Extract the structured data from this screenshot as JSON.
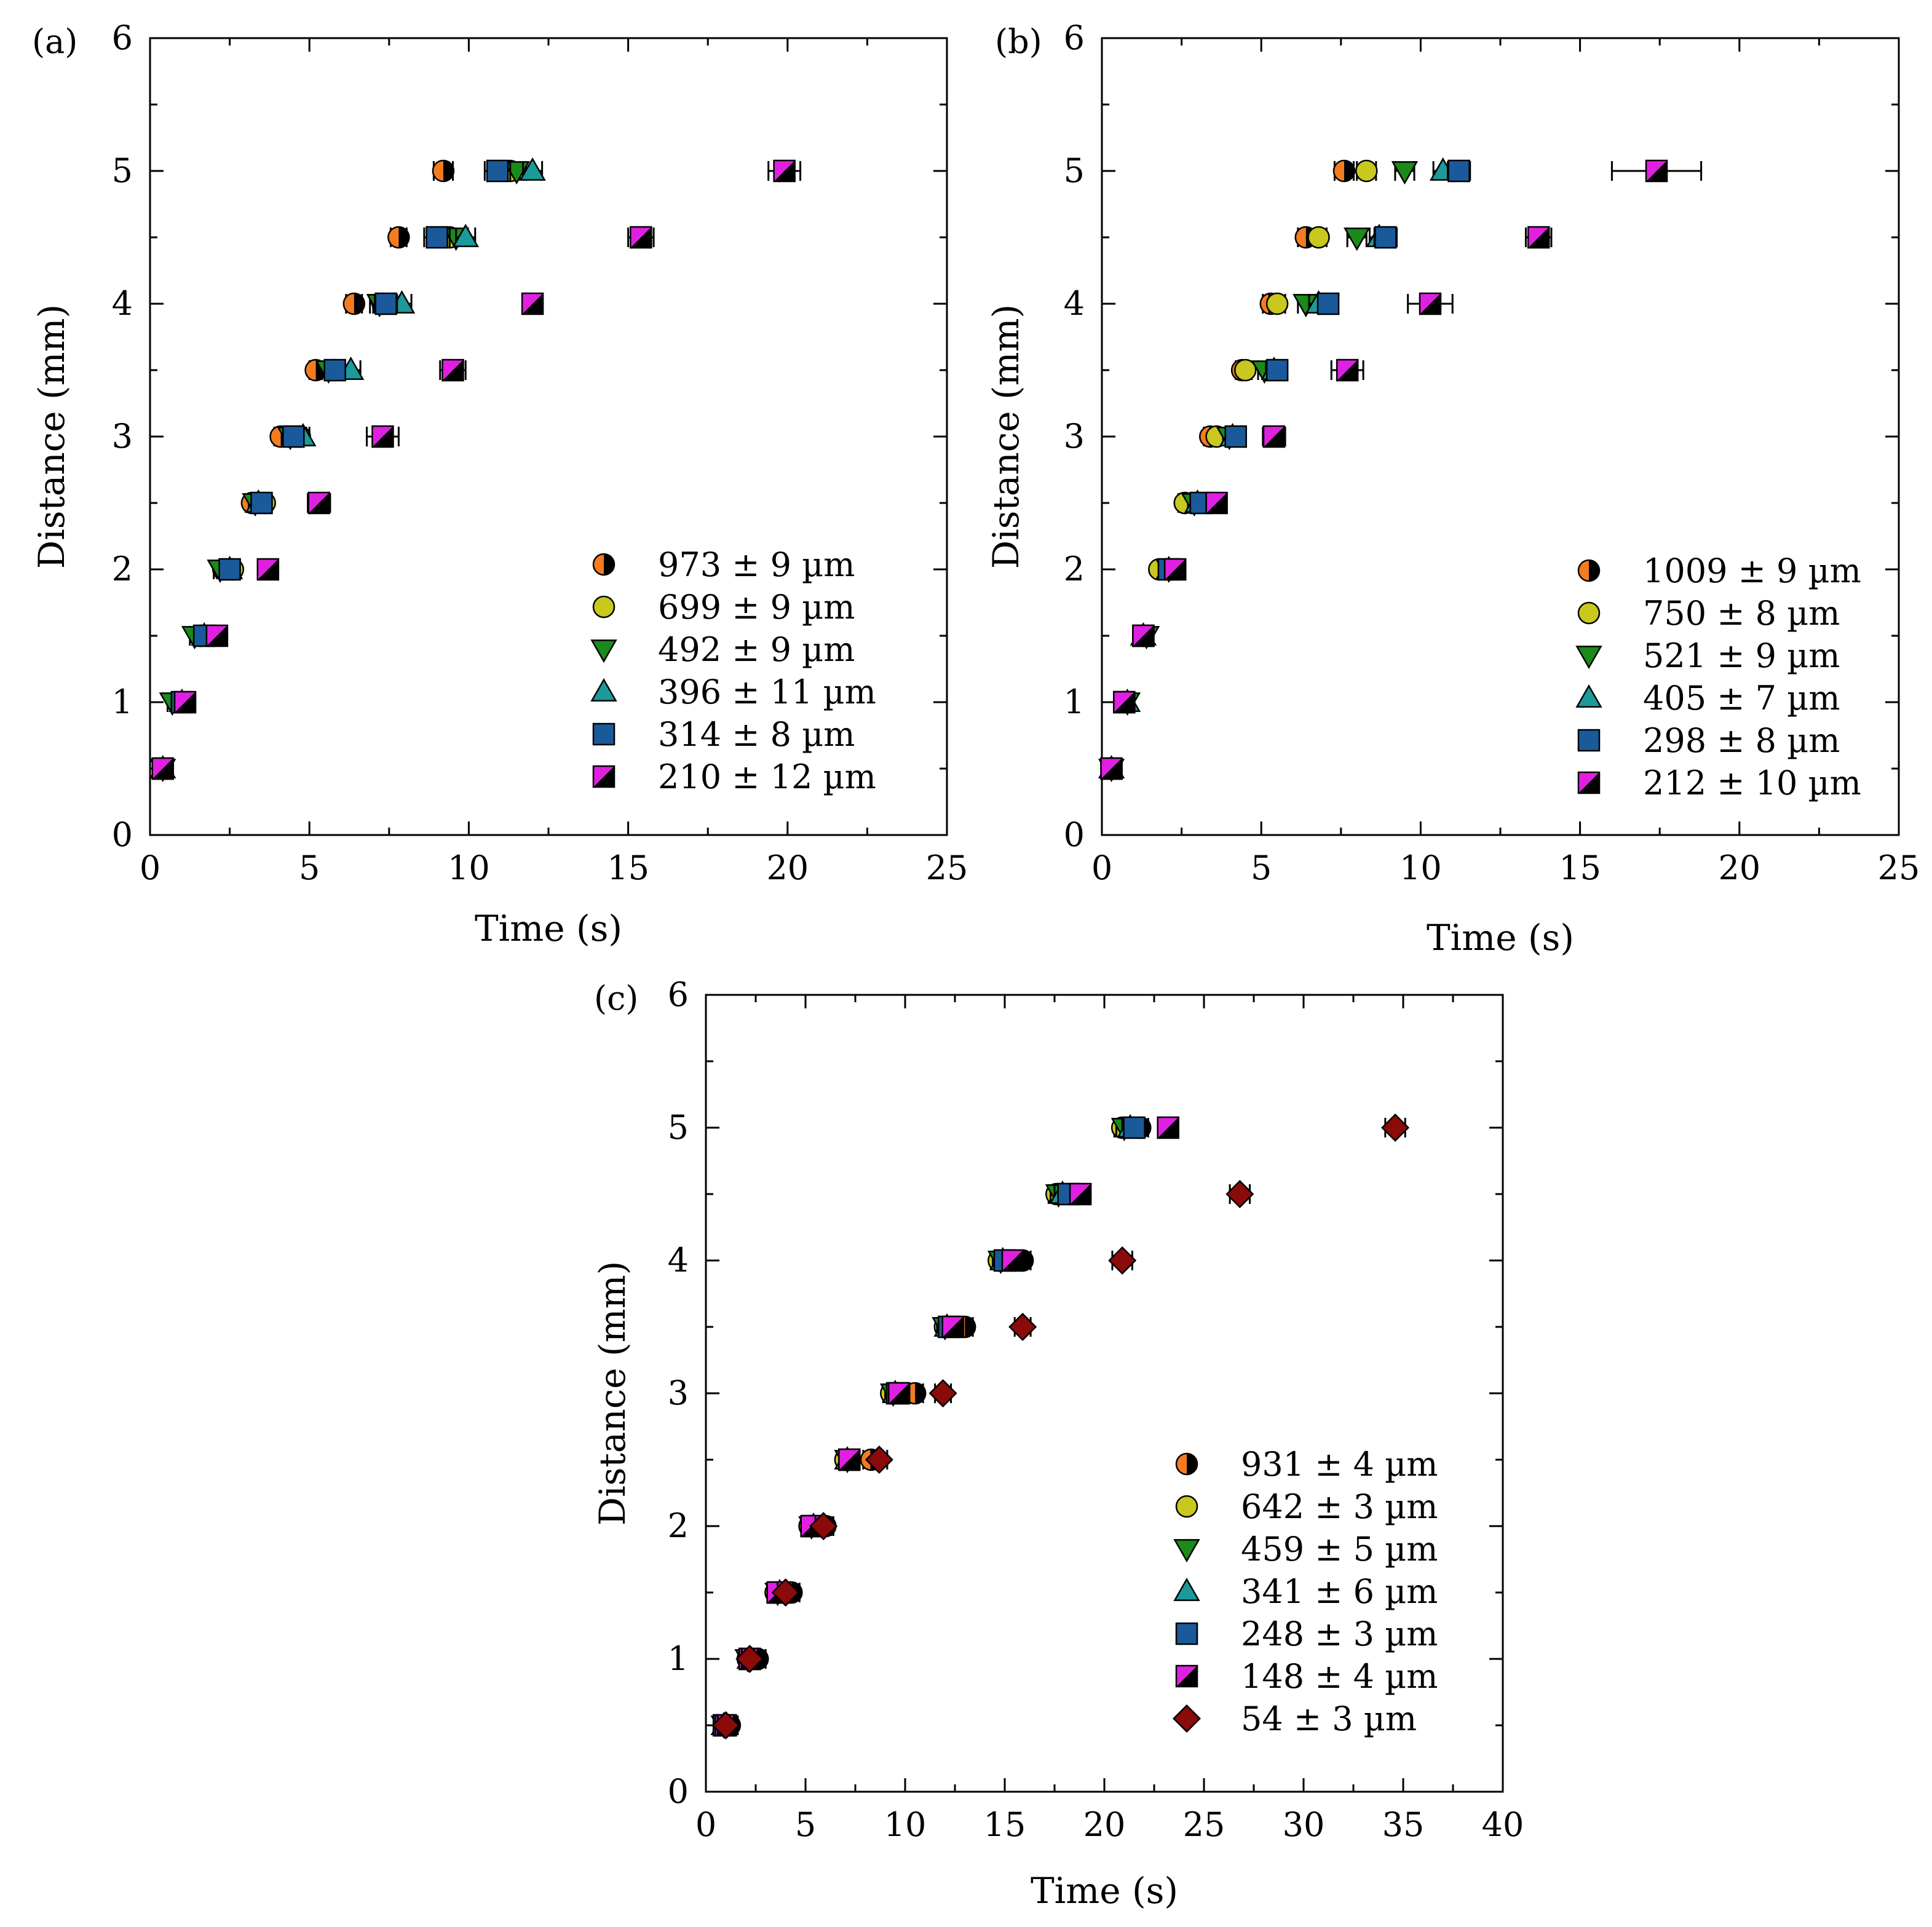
{
  "colors": {
    "orange": "#f47b20",
    "yellow": "#c8c81e",
    "green": "#1a8a1a",
    "teal": "#1c9a9a",
    "blue": "#1a5a9a",
    "magenta": "#e020e0",
    "darkred": "#8b0a0a",
    "black": "#000000"
  },
  "chart_data": [
    {
      "panel": "(a)",
      "type": "scatter",
      "xlabel": "Time (s)",
      "ylabel": "Distance (mm)",
      "xlim": [
        0,
        25
      ],
      "ylim": [
        0,
        6
      ],
      "xticks": [
        "0",
        "5",
        "10",
        "15",
        "20",
        "25"
      ],
      "yticks": [
        "0",
        "1",
        "2",
        "3",
        "4",
        "5",
        "6"
      ],
      "legend_position": "bottom-right",
      "series": [
        {
          "name": "973 ± 9 µm",
          "marker": "half-circle",
          "color": "orange",
          "x": [
            0.4,
            1.0,
            1.6,
            2.3,
            3.2,
            4.1,
            5.2,
            6.4,
            7.8,
            9.2
          ],
          "y": [
            0.5,
            1.0,
            1.5,
            2.0,
            2.5,
            3.0,
            3.5,
            4.0,
            4.5,
            5.0
          ],
          "xerr": [
            0.15,
            0.15,
            0.15,
            0.2,
            0.2,
            0.2,
            0.2,
            0.25,
            0.25,
            0.3
          ]
        },
        {
          "name": "699 ± 9 µm",
          "marker": "circle",
          "color": "yellow",
          "x": [
            0.4,
            1.0,
            1.6,
            2.6,
            3.6,
            4.7,
            5.8,
            7.3,
            9.4,
            11.3
          ],
          "y": [
            0.5,
            1.0,
            1.5,
            2.0,
            2.5,
            3.0,
            3.5,
            4.0,
            4.5,
            5.0
          ],
          "xerr": [
            0.15,
            0.15,
            0.15,
            0.2,
            0.2,
            0.2,
            0.25,
            0.3,
            0.3,
            0.3
          ]
        },
        {
          "name": "492 ± 9 µm",
          "marker": "triangle-down",
          "color": "green",
          "x": [
            0.4,
            0.7,
            1.4,
            2.2,
            3.3,
            4.4,
            5.6,
            7.2,
            9.6,
            11.5
          ],
          "y": [
            0.5,
            1.0,
            1.5,
            2.0,
            2.5,
            3.0,
            3.5,
            4.0,
            4.5,
            5.0
          ],
          "xerr": [
            0.15,
            0.15,
            0.15,
            0.2,
            0.2,
            0.2,
            0.25,
            0.3,
            0.3,
            0.3
          ]
        },
        {
          "name": "396 ± 11 µm",
          "marker": "triangle-up",
          "color": "teal",
          "x": [
            0.4,
            1.0,
            1.7,
            2.5,
            3.4,
            4.8,
            6.3,
            7.9,
            9.9,
            12.0
          ],
          "y": [
            0.5,
            1.0,
            1.5,
            2.0,
            2.5,
            3.0,
            3.5,
            4.0,
            4.5,
            5.0
          ],
          "xerr": [
            0.15,
            0.15,
            0.15,
            0.2,
            0.2,
            0.2,
            0.3,
            0.3,
            0.3,
            0.3
          ]
        },
        {
          "name": "314 ± 8 µm",
          "marker": "square",
          "color": "blue",
          "x": [
            0.4,
            1.0,
            1.7,
            2.5,
            3.5,
            4.5,
            5.8,
            7.4,
            9.0,
            10.9
          ],
          "y": [
            0.5,
            1.0,
            1.5,
            2.0,
            2.5,
            3.0,
            3.5,
            4.0,
            4.5,
            5.0
          ],
          "xerr": [
            0.15,
            0.15,
            0.15,
            0.2,
            0.2,
            0.25,
            0.3,
            0.35,
            0.4,
            0.4
          ]
        },
        {
          "name": "210 ± 12 µm",
          "marker": "half-square",
          "color": "magenta",
          "x": [
            0.4,
            1.1,
            2.1,
            3.7,
            5.3,
            7.3,
            9.5,
            12.0,
            15.4,
            19.9
          ],
          "y": [
            0.5,
            1.0,
            1.5,
            2.0,
            2.5,
            3.0,
            3.5,
            4.0,
            4.5,
            5.0
          ],
          "xerr": [
            0.15,
            0.2,
            0.25,
            0.25,
            0.35,
            0.5,
            0.4,
            0.3,
            0.4,
            0.5
          ]
        }
      ]
    },
    {
      "panel": "(b)",
      "type": "scatter",
      "xlabel": "Time (s)",
      "ylabel": "Distance (mm)",
      "xlim": [
        0,
        25
      ],
      "ylim": [
        0,
        6
      ],
      "xticks": [
        "0",
        "5",
        "10",
        "15",
        "20",
        "25"
      ],
      "yticks": [
        "0",
        "1",
        "2",
        "3",
        "4",
        "5",
        "6"
      ],
      "legend_position": "bottom-right",
      "series": [
        {
          "name": "1009 ± 9 µm",
          "marker": "half-circle",
          "color": "orange",
          "x": [
            0.3,
            0.7,
            1.3,
            2.0,
            2.6,
            3.4,
            4.4,
            5.3,
            6.4,
            7.6
          ],
          "y": [
            0.5,
            1.0,
            1.5,
            2.0,
            2.5,
            3.0,
            3.5,
            4.0,
            4.5,
            5.0
          ],
          "xerr": [
            0.15,
            0.15,
            0.15,
            0.15,
            0.2,
            0.2,
            0.2,
            0.25,
            0.25,
            0.3
          ]
        },
        {
          "name": "750 ± 8 µm",
          "marker": "circle",
          "color": "yellow",
          "x": [
            0.3,
            0.7,
            1.3,
            1.8,
            2.6,
            3.6,
            4.5,
            5.5,
            6.8,
            8.3
          ],
          "y": [
            0.5,
            1.0,
            1.5,
            2.0,
            2.5,
            3.0,
            3.5,
            4.0,
            4.5,
            5.0
          ],
          "xerr": [
            0.15,
            0.15,
            0.15,
            0.15,
            0.2,
            0.2,
            0.2,
            0.25,
            0.25,
            0.3
          ]
        },
        {
          "name": "521 ± 9 µm",
          "marker": "triangle-down",
          "color": "green",
          "x": [
            0.3,
            0.8,
            1.4,
            2.1,
            2.9,
            4.0,
            5.1,
            6.4,
            8.0,
            9.5
          ],
          "y": [
            0.5,
            1.0,
            1.5,
            2.0,
            2.5,
            3.0,
            3.5,
            4.0,
            4.5,
            5.0
          ],
          "xerr": [
            0.15,
            0.15,
            0.15,
            0.15,
            0.2,
            0.2,
            0.2,
            0.25,
            0.3,
            0.3
          ]
        },
        {
          "name": "405 ± 7 µm",
          "marker": "triangle-up",
          "color": "teal",
          "x": [
            0.3,
            0.8,
            1.3,
            2.1,
            3.0,
            4.1,
            5.4,
            6.8,
            8.7,
            10.7
          ],
          "y": [
            0.5,
            1.0,
            1.5,
            2.0,
            2.5,
            3.0,
            3.5,
            4.0,
            4.5,
            5.0
          ],
          "xerr": [
            0.15,
            0.15,
            0.15,
            0.15,
            0.2,
            0.2,
            0.25,
            0.3,
            0.3,
            0.3
          ]
        },
        {
          "name": "298 ± 8 µm",
          "marker": "square",
          "color": "blue",
          "x": [
            0.3,
            0.7,
            1.3,
            2.1,
            3.1,
            4.2,
            5.5,
            7.1,
            8.9,
            11.2
          ],
          "y": [
            0.5,
            1.0,
            1.5,
            2.0,
            2.5,
            3.0,
            3.5,
            4.0,
            4.5,
            5.0
          ],
          "xerr": [
            0.15,
            0.15,
            0.15,
            0.2,
            0.2,
            0.25,
            0.3,
            0.3,
            0.35,
            0.35
          ]
        },
        {
          "name": "212 ± 10 µm",
          "marker": "half-square",
          "color": "magenta",
          "x": [
            0.3,
            0.7,
            1.3,
            2.3,
            3.6,
            5.4,
            7.7,
            10.3,
            13.7,
            17.4
          ],
          "y": [
            0.5,
            1.0,
            1.5,
            2.0,
            2.5,
            3.0,
            3.5,
            4.0,
            4.5,
            5.0
          ],
          "xerr": [
            0.15,
            0.15,
            0.2,
            0.25,
            0.3,
            0.35,
            0.5,
            0.7,
            0.4,
            1.4
          ]
        }
      ]
    },
    {
      "panel": "(c)",
      "type": "scatter",
      "xlabel": "Time (s)",
      "ylabel": "Distance (mm)",
      "xlim": [
        0,
        40
      ],
      "ylim": [
        0,
        6
      ],
      "xticks": [
        "0",
        "5",
        "10",
        "15",
        "20",
        "25",
        "30",
        "35",
        "40"
      ],
      "yticks": [
        "0",
        "1",
        "2",
        "3",
        "4",
        "5",
        "6"
      ],
      "legend_position": "bottom-right",
      "series": [
        {
          "name": "931 ± 4 µm",
          "marker": "half-circle",
          "color": "orange",
          "x": [
            1.2,
            2.6,
            4.3,
            6.0,
            8.3,
            10.5,
            13.0,
            15.9,
            18.2,
            21.8
          ],
          "y": [
            0.5,
            1.0,
            1.5,
            2.0,
            2.5,
            3.0,
            3.5,
            4.0,
            4.5,
            5.0
          ],
          "xerr": [
            0.4,
            0.4,
            0.4,
            0.4,
            0.4,
            0.4,
            0.4,
            0.4,
            0.4,
            0.4
          ]
        },
        {
          "name": "642 ± 3 µm",
          "marker": "circle",
          "color": "yellow",
          "x": [
            0.9,
            2.1,
            3.5,
            5.2,
            7.0,
            9.3,
            12.0,
            14.7,
            17.6,
            20.9
          ],
          "y": [
            0.5,
            1.0,
            1.5,
            2.0,
            2.5,
            3.0,
            3.5,
            4.0,
            4.5,
            5.0
          ],
          "xerr": [
            0.4,
            0.4,
            0.4,
            0.4,
            0.4,
            0.4,
            0.4,
            0.4,
            0.4,
            0.4
          ]
        },
        {
          "name": "459 ± 5 µm",
          "marker": "triangle-down",
          "color": "green",
          "x": [
            0.9,
            2.1,
            3.6,
            5.3,
            7.1,
            9.4,
            12.0,
            14.8,
            17.7,
            21.0
          ],
          "y": [
            0.5,
            1.0,
            1.5,
            2.0,
            2.5,
            3.0,
            3.5,
            4.0,
            4.5,
            5.0
          ],
          "xerr": [
            0.4,
            0.4,
            0.4,
            0.4,
            0.4,
            0.4,
            0.4,
            0.4,
            0.4,
            0.4
          ]
        },
        {
          "name": "341 ± 6 µm",
          "marker": "triangle-up",
          "color": "teal",
          "x": [
            0.9,
            2.2,
            3.7,
            5.4,
            7.1,
            9.5,
            12.1,
            14.9,
            17.9,
            21.3
          ],
          "y": [
            0.5,
            1.0,
            1.5,
            2.0,
            2.5,
            3.0,
            3.5,
            4.0,
            4.5,
            5.0
          ],
          "xerr": [
            0.4,
            0.4,
            0.4,
            0.4,
            0.4,
            0.4,
            0.4,
            0.4,
            0.4,
            0.4
          ]
        },
        {
          "name": "248 ± 3 µm",
          "marker": "square",
          "color": "blue",
          "x": [
            0.9,
            2.2,
            3.7,
            5.4,
            7.2,
            9.6,
            12.2,
            15.0,
            18.2,
            21.5
          ],
          "y": [
            0.5,
            1.0,
            1.5,
            2.0,
            2.5,
            3.0,
            3.5,
            4.0,
            4.5,
            5.0
          ],
          "xerr": [
            0.4,
            0.4,
            0.4,
            0.4,
            0.4,
            0.4,
            0.4,
            0.4,
            0.4,
            0.4
          ]
        },
        {
          "name": "148 ± 4 µm",
          "marker": "half-square",
          "color": "magenta",
          "x": [
            1.0,
            2.2,
            3.6,
            5.3,
            7.2,
            9.7,
            12.4,
            15.4,
            18.8,
            23.2
          ],
          "y": [
            0.5,
            1.0,
            1.5,
            2.0,
            2.5,
            3.0,
            3.5,
            4.0,
            4.5,
            5.0
          ],
          "xerr": [
            0.4,
            0.4,
            0.4,
            0.4,
            0.4,
            0.4,
            0.4,
            0.4,
            0.4,
            0.4
          ]
        },
        {
          "name": "54 ± 3 µm",
          "marker": "diamond",
          "color": "darkred",
          "x": [
            1.0,
            2.2,
            4.0,
            5.9,
            8.7,
            11.9,
            15.9,
            20.9,
            26.8,
            34.6
          ],
          "y": [
            0.5,
            1.0,
            1.5,
            2.0,
            2.5,
            3.0,
            3.5,
            4.0,
            4.5,
            5.0
          ],
          "xerr": [
            0.4,
            0.4,
            0.4,
            0.4,
            0.4,
            0.4,
            0.4,
            0.5,
            0.5,
            0.5
          ]
        }
      ]
    }
  ]
}
